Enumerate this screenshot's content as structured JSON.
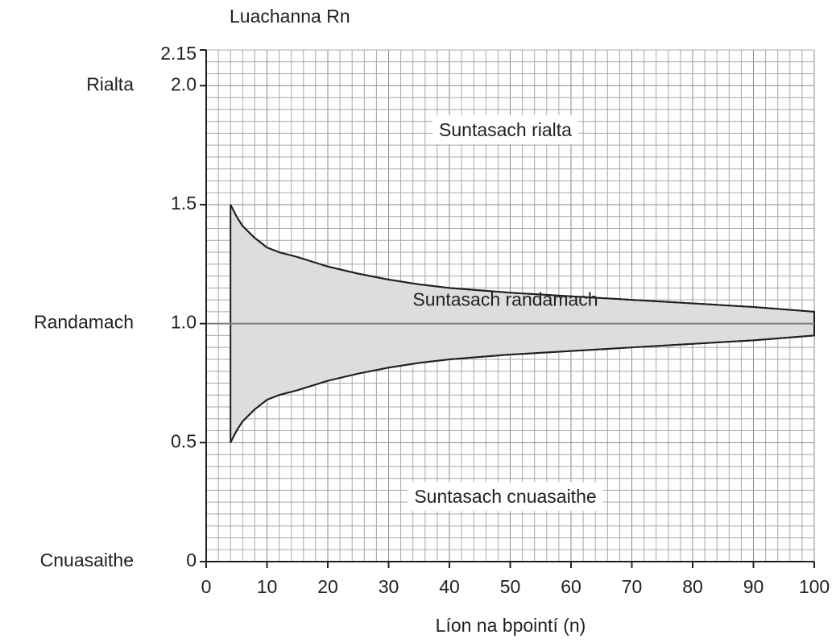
{
  "chart_data": {
    "type": "area",
    "y_axis_title": "Luachanna Rn",
    "x_axis_title": "Líon na bpointí (n)",
    "x": [
      4,
      5,
      6,
      8,
      10,
      12,
      15,
      20,
      25,
      30,
      35,
      40,
      50,
      60,
      70,
      80,
      90,
      100
    ],
    "upper": [
      1.5,
      1.45,
      1.41,
      1.36,
      1.32,
      1.3,
      1.28,
      1.24,
      1.21,
      1.185,
      1.165,
      1.15,
      1.13,
      1.115,
      1.1,
      1.085,
      1.07,
      1.05
    ],
    "lower": [
      0.5,
      0.55,
      0.59,
      0.64,
      0.68,
      0.7,
      0.72,
      0.76,
      0.79,
      0.815,
      0.835,
      0.85,
      0.87,
      0.885,
      0.9,
      0.915,
      0.93,
      0.95
    ],
    "fill_color": "#dcdddf",
    "line_color": "#231f20",
    "reference_line": 1,
    "reference_color": "#808080",
    "annotations": [
      "Suntasach rialta",
      "Suntasach randamach",
      "Suntasach cnuasaithe"
    ],
    "y_side_labels": [
      {
        "value": 2,
        "label": "Rialta"
      },
      {
        "value": 1,
        "label": "Randamach"
      },
      {
        "value": 0,
        "label": "Cnuasaithe"
      }
    ],
    "xlim": [
      0,
      100
    ],
    "xticks": [
      0,
      10,
      20,
      30,
      40,
      50,
      60,
      70,
      80,
      90,
      100
    ],
    "ylim": [
      0,
      2.15
    ],
    "yticks": [
      0,
      0.5,
      {
        "value": 1,
        "label": "1.0"
      },
      1.5,
      {
        "value": 2,
        "label": "2.0"
      },
      2.15
    ],
    "grid": true,
    "grid_step_x": 2,
    "grid_step_y": 0.05
  }
}
